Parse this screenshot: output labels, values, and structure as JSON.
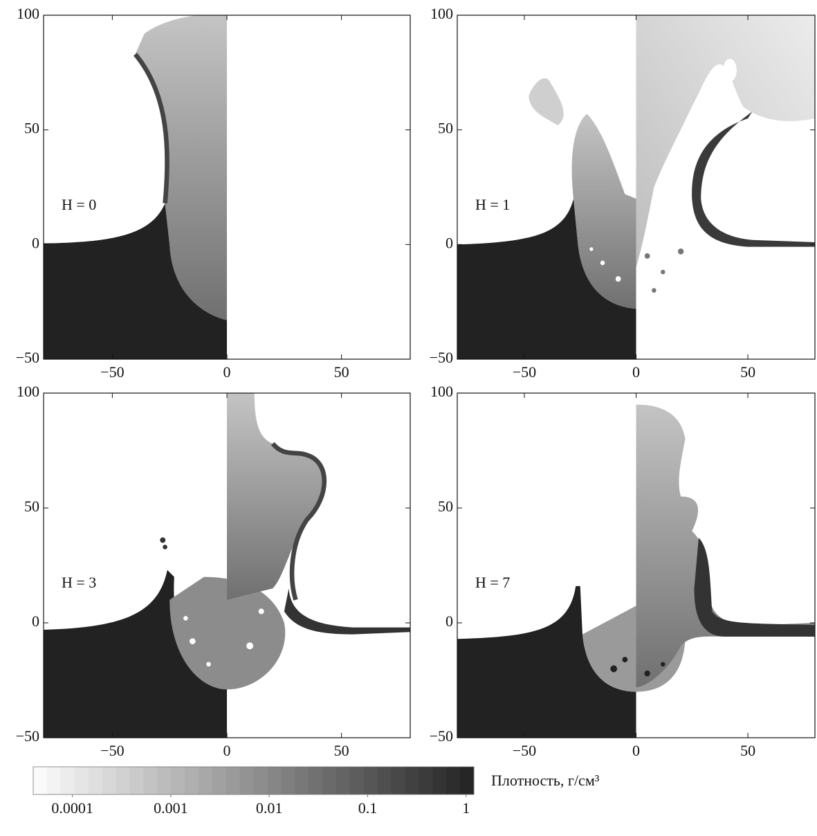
{
  "chart_data": [
    {
      "type": "field",
      "annotation": "H = 0",
      "xlim": [
        -80,
        80
      ],
      "ylim": [
        -50,
        100
      ],
      "xticks": [
        {
          "value": -50,
          "label": "−50"
        },
        0,
        50
      ],
      "yticks": [
        {
          "value": -50,
          "label": "−50"
        },
        0,
        50,
        100
      ]
    },
    {
      "type": "field",
      "annotation": "H = 1",
      "xlim": [
        -80,
        80
      ],
      "ylim": [
        -50,
        100
      ],
      "xticks": [
        {
          "value": -50,
          "label": "−50"
        },
        0,
        50
      ],
      "yticks": [
        {
          "value": -50,
          "label": "−50"
        },
        0,
        50,
        100
      ]
    },
    {
      "type": "field",
      "annotation": "H = 3",
      "xlim": [
        -80,
        80
      ],
      "ylim": [
        -50,
        100
      ],
      "xticks": [
        {
          "value": -50,
          "label": "−50"
        },
        0,
        50
      ],
      "yticks": [
        {
          "value": -50,
          "label": "−50"
        },
        0,
        50,
        100
      ]
    },
    {
      "type": "field",
      "annotation": "H = 7",
      "xlim": [
        -80,
        80
      ],
      "ylim": [
        -50,
        100
      ],
      "xticks": [
        {
          "value": -50,
          "label": "−50"
        },
        0,
        50
      ],
      "yticks": [
        {
          "value": -50,
          "label": "−50"
        },
        0,
        50,
        100
      ]
    },
    {
      "type": "colorbar",
      "label": "Плотность, г/см³",
      "xlim": [
        4e-05,
        1.2
      ],
      "xticks": [
        0.0001,
        0.001,
        0.01,
        0.1,
        1
      ],
      "log_scale": true,
      "color_range": [
        "#fafafa",
        "#262626"
      ]
    }
  ]
}
